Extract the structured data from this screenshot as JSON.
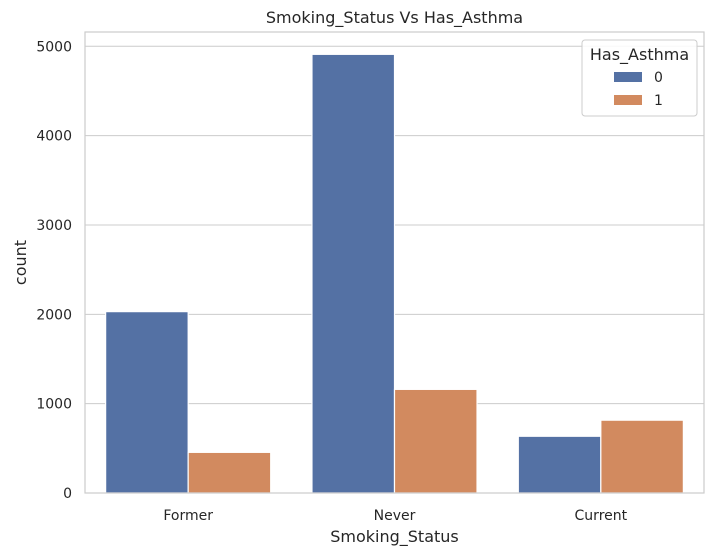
{
  "chart_data": {
    "type": "bar",
    "title": "Smoking_Status Vs Has_Asthma",
    "xlabel": "Smoking_Status",
    "ylabel": "count",
    "categories": [
      "Former",
      "Never",
      "Current"
    ],
    "series": [
      {
        "name": "0",
        "values": [
          2030,
          4910,
          635
        ],
        "color": "#5471a4"
      },
      {
        "name": "1",
        "values": [
          455,
          1160,
          815
        ],
        "color": "#d28a5f"
      }
    ],
    "ylim": [
      0,
      5160
    ],
    "yticks": [
      0,
      1000,
      2000,
      3000,
      4000,
      5000
    ],
    "grid": true,
    "legend": {
      "title": "Has_Asthma",
      "placement": "top-right"
    }
  }
}
